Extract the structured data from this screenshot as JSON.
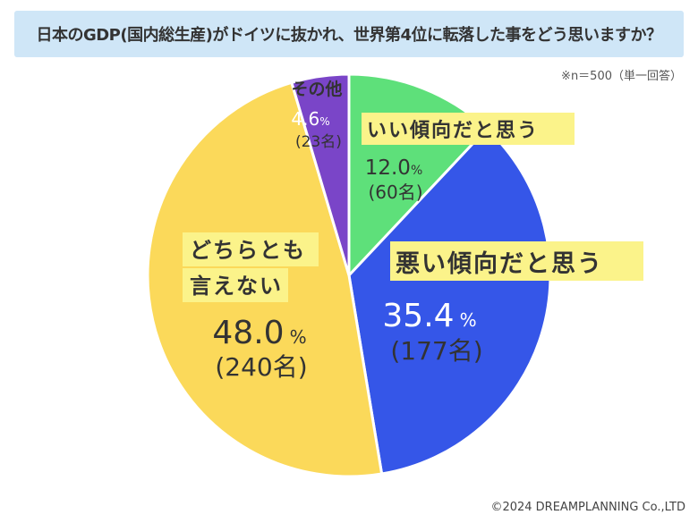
{
  "header": {
    "title": "日本のGDP(国内総生産)がドイツに抜かれ、世界第4位に転落した事をどう思いますか？"
  },
  "note": "※n＝500（単一回答）",
  "copyright": "©2024 DREAMPLANNING Co.,LTD",
  "chart_data": {
    "type": "pie",
    "title": "日本のGDP(国内総生産)がドイツに抜かれ、世界第4位に転落した事をどう思いますか？",
    "n": 500,
    "start": "12 o'clock, clockwise",
    "slices": [
      {
        "label": "いい傾向だと思う",
        "value": 12.0,
        "pct_text": "12.0",
        "count_text": "(60名)",
        "color": "#5ee07a"
      },
      {
        "label": "悪い傾向だと思う",
        "value": 35.4,
        "pct_text": "35.4",
        "count_text": "(177名)",
        "color": "#3556e8"
      },
      {
        "label_lines": [
          "どちらとも",
          "言えない"
        ],
        "label": "どちらとも言えない",
        "value": 48.0,
        "pct_text": "48.0",
        "count_text": "(240名)",
        "color": "#fbd95a"
      },
      {
        "label": "その他",
        "value": 4.6,
        "pct_text": "4.6",
        "count_text": "(23名)",
        "color": "#7a45c8"
      }
    ],
    "percent_sign": "%"
  }
}
